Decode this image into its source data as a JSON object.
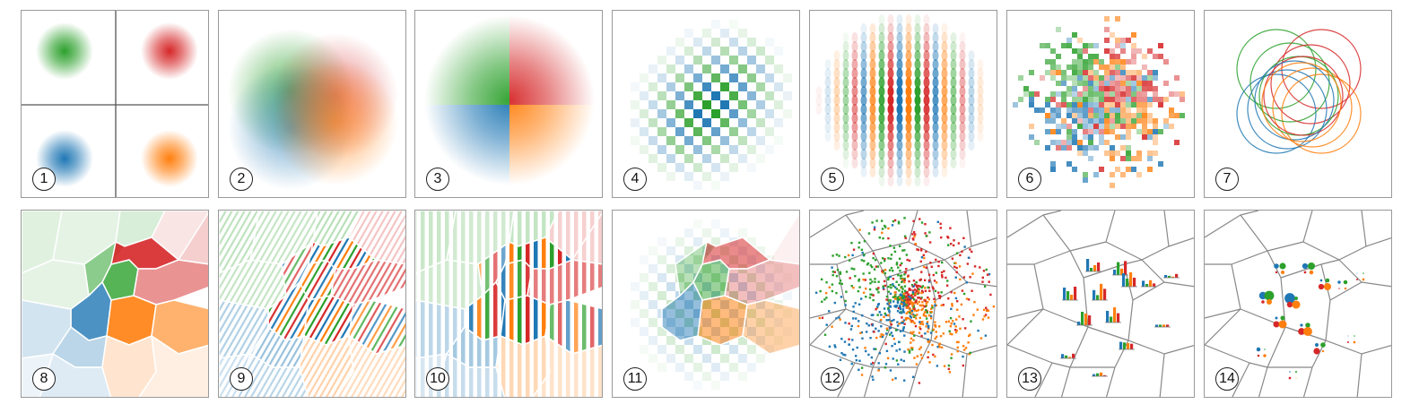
{
  "colors": {
    "green": "#2ca02c",
    "red": "#d62728",
    "blue": "#1f77b4",
    "orange": "#ff7f0e",
    "border": "#999999",
    "cell": "#888888"
  },
  "panels": [
    {
      "label": "1",
      "view": "separate-gaussians"
    },
    {
      "label": "2",
      "view": "blended-blur"
    },
    {
      "label": "3",
      "view": "quadrant-blur"
    },
    {
      "label": "4",
      "view": "checker-weave"
    },
    {
      "label": "5",
      "view": "dot-weave"
    },
    {
      "label": "6",
      "view": "random-pixels"
    },
    {
      "label": "7",
      "view": "circles"
    },
    {
      "label": "8",
      "view": "voronoi-fill"
    },
    {
      "label": "9",
      "view": "voronoi-hatch"
    },
    {
      "label": "10",
      "view": "voronoi-stripes"
    },
    {
      "label": "11",
      "view": "voronoi-checker"
    },
    {
      "label": "12",
      "view": "voronoi-points"
    },
    {
      "label": "13",
      "view": "voronoi-bars"
    },
    {
      "label": "14",
      "view": "voronoi-dots"
    }
  ]
}
